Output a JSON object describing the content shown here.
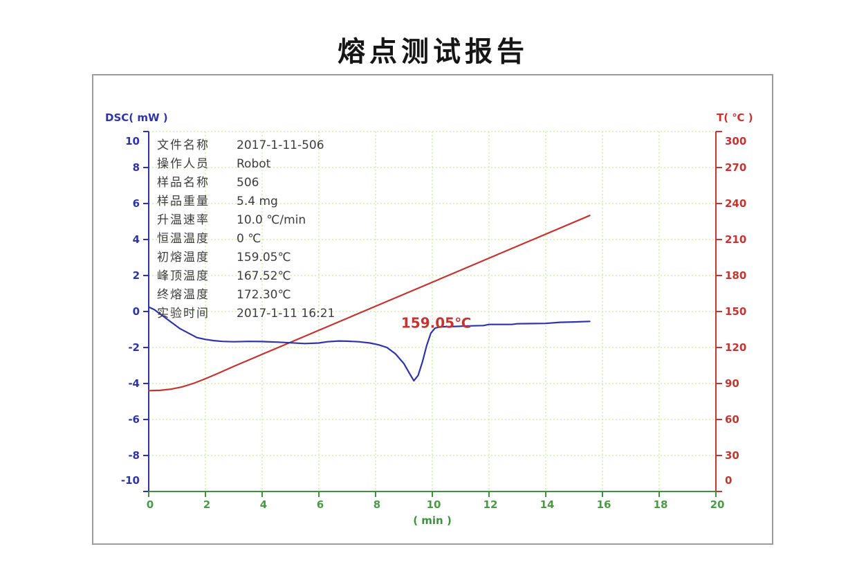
{
  "title": "熔点测试报告",
  "info": {
    "rows": [
      {
        "label": "文件名称",
        "value": "2017-1-11-506"
      },
      {
        "label": "操作人员",
        "value": "Robot"
      },
      {
        "label": "样品名称",
        "value": "506"
      },
      {
        "label": "样品重量",
        "value": "5.4 mg"
      },
      {
        "label": "升温速率",
        "value": "10.0 ℃/min"
      },
      {
        "label": "恒温温度",
        "value": "0 ℃"
      },
      {
        "label": "初熔温度",
        "value": "159.05℃"
      },
      {
        "label": "峰顶温度",
        "value": "167.52℃"
      },
      {
        "label": "终熔温度",
        "value": "172.30℃"
      },
      {
        "label": "实验时间",
        "value": "2017-1-11 16:21"
      }
    ]
  },
  "chart_data": {
    "type": "line",
    "title": "熔点测试报告",
    "x": {
      "title": "( min )",
      "min": 0,
      "max": 20,
      "ticks": [
        0,
        2,
        4,
        6,
        8,
        10,
        12,
        14,
        16,
        18,
        20
      ],
      "axis_color": "#3f9140",
      "label_color": "#4a9a43"
    },
    "y_left": {
      "title": "DSC( mW )",
      "min": -10,
      "max": 10,
      "ticks": [
        -10,
        -8,
        -6,
        -4,
        -2,
        0,
        2,
        4,
        6,
        8,
        10
      ],
      "color": "#2e34a8"
    },
    "y_right": {
      "title": "T( ℃ )",
      "min": 0,
      "max": 300,
      "ticks": [
        0,
        30,
        60,
        90,
        120,
        150,
        180,
        210,
        240,
        270,
        300
      ],
      "color": "#c43430"
    },
    "grid": {
      "color": "#cbe9a2",
      "dash": "2 3",
      "show": true
    },
    "legend": {
      "show": false
    },
    "series": [
      {
        "name": "T",
        "axis": "right",
        "color": "#c43430",
        "points": [
          [
            0,
            84
          ],
          [
            0.4,
            84.3
          ],
          [
            0.8,
            85.3
          ],
          [
            1.2,
            87.3
          ],
          [
            1.6,
            90.3
          ],
          [
            2.0,
            94
          ],
          [
            2.5,
            99
          ],
          [
            3.0,
            104.3
          ],
          [
            15.55,
            230
          ]
        ]
      },
      {
        "name": "DSC",
        "axis": "left",
        "color": "#2e34a8",
        "points": [
          [
            0,
            0.25
          ],
          [
            0.2,
            0.1
          ],
          [
            0.5,
            -0.25
          ],
          [
            0.8,
            -0.6
          ],
          [
            1.1,
            -0.95
          ],
          [
            1.4,
            -1.2
          ],
          [
            1.7,
            -1.45
          ],
          [
            2.0,
            -1.55
          ],
          [
            2.3,
            -1.62
          ],
          [
            2.6,
            -1.66
          ],
          [
            3.0,
            -1.68
          ],
          [
            3.5,
            -1.66
          ],
          [
            4.0,
            -1.67
          ],
          [
            4.5,
            -1.7
          ],
          [
            5.0,
            -1.74
          ],
          [
            5.5,
            -1.78
          ],
          [
            6.0,
            -1.75
          ],
          [
            6.3,
            -1.68
          ],
          [
            6.7,
            -1.64
          ],
          [
            7.0,
            -1.65
          ],
          [
            7.4,
            -1.68
          ],
          [
            7.8,
            -1.75
          ],
          [
            8.1,
            -1.85
          ],
          [
            8.4,
            -2.0
          ],
          [
            8.7,
            -2.35
          ],
          [
            9.0,
            -2.9
          ],
          [
            9.2,
            -3.45
          ],
          [
            9.35,
            -3.85
          ],
          [
            9.5,
            -3.55
          ],
          [
            9.65,
            -2.8
          ],
          [
            9.8,
            -1.9
          ],
          [
            9.95,
            -1.2
          ],
          [
            10.1,
            -0.92
          ],
          [
            10.3,
            -0.85
          ],
          [
            10.8,
            -0.83
          ],
          [
            11.3,
            -0.8
          ],
          [
            11.8,
            -0.78
          ],
          [
            12.0,
            -0.72
          ],
          [
            12.8,
            -0.72
          ],
          [
            13.0,
            -0.68
          ],
          [
            14.0,
            -0.66
          ],
          [
            14.5,
            -0.6
          ],
          [
            15.0,
            -0.58
          ],
          [
            15.55,
            -0.55
          ]
        ]
      }
    ],
    "annotation": {
      "text": "159.05℃",
      "x": 8.9,
      "y_dsc": -0.68,
      "color": "#c43430"
    }
  }
}
